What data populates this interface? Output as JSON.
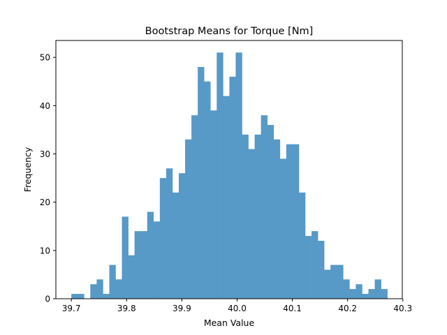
{
  "chart_data": {
    "type": "bar",
    "title": "Bootstrap Means for Torque [Nm]",
    "xlabel": "Mean Value",
    "ylabel": "Frequency",
    "xlim": [
      39.672,
      40.299
    ],
    "ylim": [
      0,
      53.5
    ],
    "xticks": [
      "39.7",
      "39.8",
      "39.9",
      "40.0",
      "40.1",
      "40.2",
      "40.3"
    ],
    "xtick_values": [
      39.7,
      39.8,
      39.9,
      40.0,
      40.1,
      40.2,
      40.3
    ],
    "yticks": [
      "0",
      "10",
      "20",
      "30",
      "40",
      "50"
    ],
    "ytick_values": [
      0,
      10,
      20,
      30,
      40,
      50
    ],
    "bar_color": "#5799c7",
    "grid": false,
    "bin_start": 39.7,
    "bin_end": 40.272,
    "counts": [
      1,
      1,
      0,
      3,
      4,
      1,
      7,
      4,
      17,
      9,
      14,
      14,
      18,
      16,
      25,
      27,
      22,
      26,
      33,
      38,
      48,
      45,
      39,
      51,
      42,
      46,
      51,
      34,
      31,
      34,
      38,
      36,
      33,
      29,
      32,
      32,
      22,
      13,
      14,
      12,
      6,
      7,
      7,
      4,
      2,
      3,
      1,
      2,
      4,
      2
    ]
  }
}
